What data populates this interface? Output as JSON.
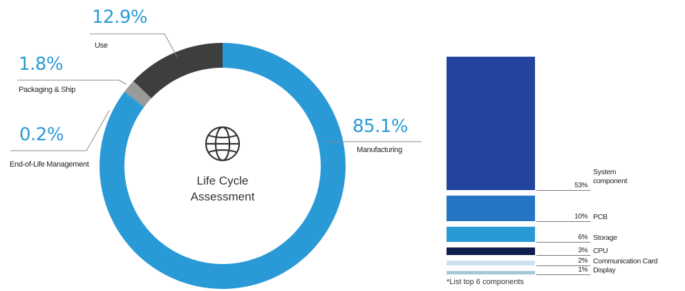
{
  "chart_data": [
    {
      "type": "pie",
      "center_label": [
        "Life Cycle",
        "Assessment"
      ],
      "center_icon": "globe-icon",
      "slices": [
        {
          "label": "Manufacturing",
          "value_label": "85.1%",
          "value": 85.1,
          "color": "#2a9ad6"
        },
        {
          "label": "End-of-Life Management",
          "value_label": "0.2%",
          "value": 0.2,
          "color": "#2a9ad6"
        },
        {
          "label": "Packaging & Ship",
          "value_label": "1.8%",
          "value": 1.8,
          "color": "#9a9a9a"
        },
        {
          "label": "Use",
          "value_label": "12.9%",
          "value": 12.9,
          "color": "#3e3e3e"
        }
      ]
    },
    {
      "type": "bar",
      "orientation": "stacked-vertical",
      "categories": [
        "System component",
        "PCB",
        "Storage",
        "CPU",
        "Communication Card",
        "Display"
      ],
      "values": [
        53,
        10,
        6,
        3,
        2,
        1
      ],
      "value_labels": [
        "53%",
        "10%",
        "6%",
        "3%",
        "2%",
        "1%"
      ],
      "colors": [
        "#22449c",
        "#2476c4",
        "#2a9ad6",
        "#0f1f4f",
        "#cfe3ee",
        "#a4c8d8"
      ],
      "footnote": "*List top 6 components"
    }
  ]
}
